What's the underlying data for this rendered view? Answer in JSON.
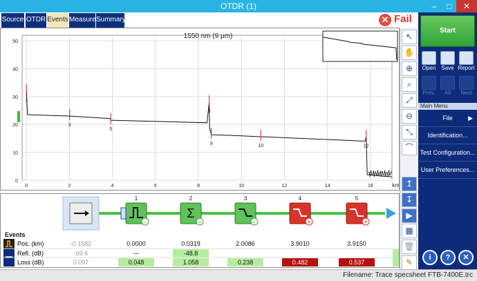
{
  "window": {
    "title": "OTDR (1)",
    "minimize": "–",
    "maximize": "□",
    "close": "✕"
  },
  "tabs": [
    {
      "label": "Source"
    },
    {
      "label": "OTDR"
    },
    {
      "label": "Events",
      "active": true
    },
    {
      "label": "Measure"
    },
    {
      "label": "Summary"
    }
  ],
  "status": {
    "label": "Fail",
    "color": "#d93a2f"
  },
  "graph": {
    "title": "1550 nm (9 µm)",
    "x_unit": "km"
  },
  "chart_data": {
    "type": "line",
    "title": "1550 nm (9 µm)",
    "xlabel": "km",
    "ylabel": "",
    "xlim": [
      -0.2,
      17
    ],
    "ylim": [
      0,
      52
    ],
    "x_ticks": [
      0,
      2,
      4,
      6,
      8,
      10,
      12,
      14,
      16
    ],
    "y_ticks": [
      0,
      10,
      20,
      30,
      40,
      50
    ],
    "grid": true,
    "trace": [
      [
        0,
        32
      ],
      [
        0.05,
        23.5
      ],
      [
        2,
        23
      ],
      [
        3.9,
        22.1
      ],
      [
        3.92,
        21.5
      ],
      [
        8.4,
        20.6
      ],
      [
        8.5,
        28
      ],
      [
        8.52,
        18.6
      ],
      [
        8.6,
        16.3
      ],
      [
        10,
        15.9
      ],
      [
        15.75,
        14
      ],
      [
        15.8,
        15.5
      ],
      [
        15.85,
        2
      ],
      [
        16.5,
        1.5
      ],
      [
        17,
        1.2
      ]
    ],
    "event_markers": [
      {
        "label": "1",
        "x": 0
      },
      {
        "label": "3",
        "x": 2.01
      },
      {
        "label": "5",
        "x": 3.92
      },
      {
        "label": "8",
        "x": 8.5
      },
      {
        "label": "9",
        "x": 8.6
      },
      {
        "label": "10",
        "x": 10.9
      },
      {
        "label": "12",
        "x": 15.8
      }
    ],
    "minimap_trace": [
      [
        0,
        0.2
      ],
      [
        0.35,
        0.35
      ],
      [
        0.36,
        0.37
      ],
      [
        0.52,
        0.4
      ],
      [
        0.53,
        0.43
      ],
      [
        0.98,
        0.55
      ],
      [
        0.99,
        0.95
      ]
    ]
  },
  "events_row": {
    "title": "Events",
    "labels": {
      "pos": "Pos. (km)",
      "refl": "Refl. (dB)",
      "loss": "Loss (dB)"
    },
    "columns": [
      {
        "num": "",
        "icon": "launch-arrow-icon",
        "pos": "-0.1582",
        "refl": "-69.6",
        "loss": "0.097",
        "loss_color": "",
        "status": ""
      },
      {
        "num": "1",
        "icon": "reflective-event-icon",
        "pos": "0.0000",
        "refl": "---",
        "loss": "0.048",
        "loss_color": "#b6ec9e",
        "status": "pass"
      },
      {
        "num": "2",
        "icon": "sum-icon",
        "pos": "0.0319",
        "refl": "-48.8",
        "loss": "1.058",
        "loss_color": "#b6ec9e",
        "status": "pass"
      },
      {
        "num": "3",
        "icon": "non-reflective-event-icon",
        "pos": "2.0086",
        "refl": "",
        "loss": "0.238",
        "loss_color": "#b6ec9e",
        "status": "pass"
      },
      {
        "num": "4",
        "icon": "non-reflective-event-icon",
        "pos": "3.9010",
        "refl": "",
        "loss": "0.482",
        "loss_color": "#b5120f",
        "status": "fail"
      },
      {
        "num": "5",
        "icon": "non-reflective-event-icon",
        "pos": "3.9150",
        "refl": "",
        "loss": "0.537",
        "loss_color": "#b5120f",
        "status": "fail"
      }
    ]
  },
  "sidebar": {
    "start": "Start",
    "open": "Open",
    "save": "Save",
    "report": "Report",
    "prev": "Prev.",
    "all": "All",
    "next": "Next",
    "main_menu": "Main Menu",
    "menu": [
      "File",
      "Identification...",
      "Test Configuration...",
      "User Preferences..."
    ]
  },
  "statusbar": {
    "filename": "Filename: Trace specsheet FTB-7400E.trc"
  }
}
